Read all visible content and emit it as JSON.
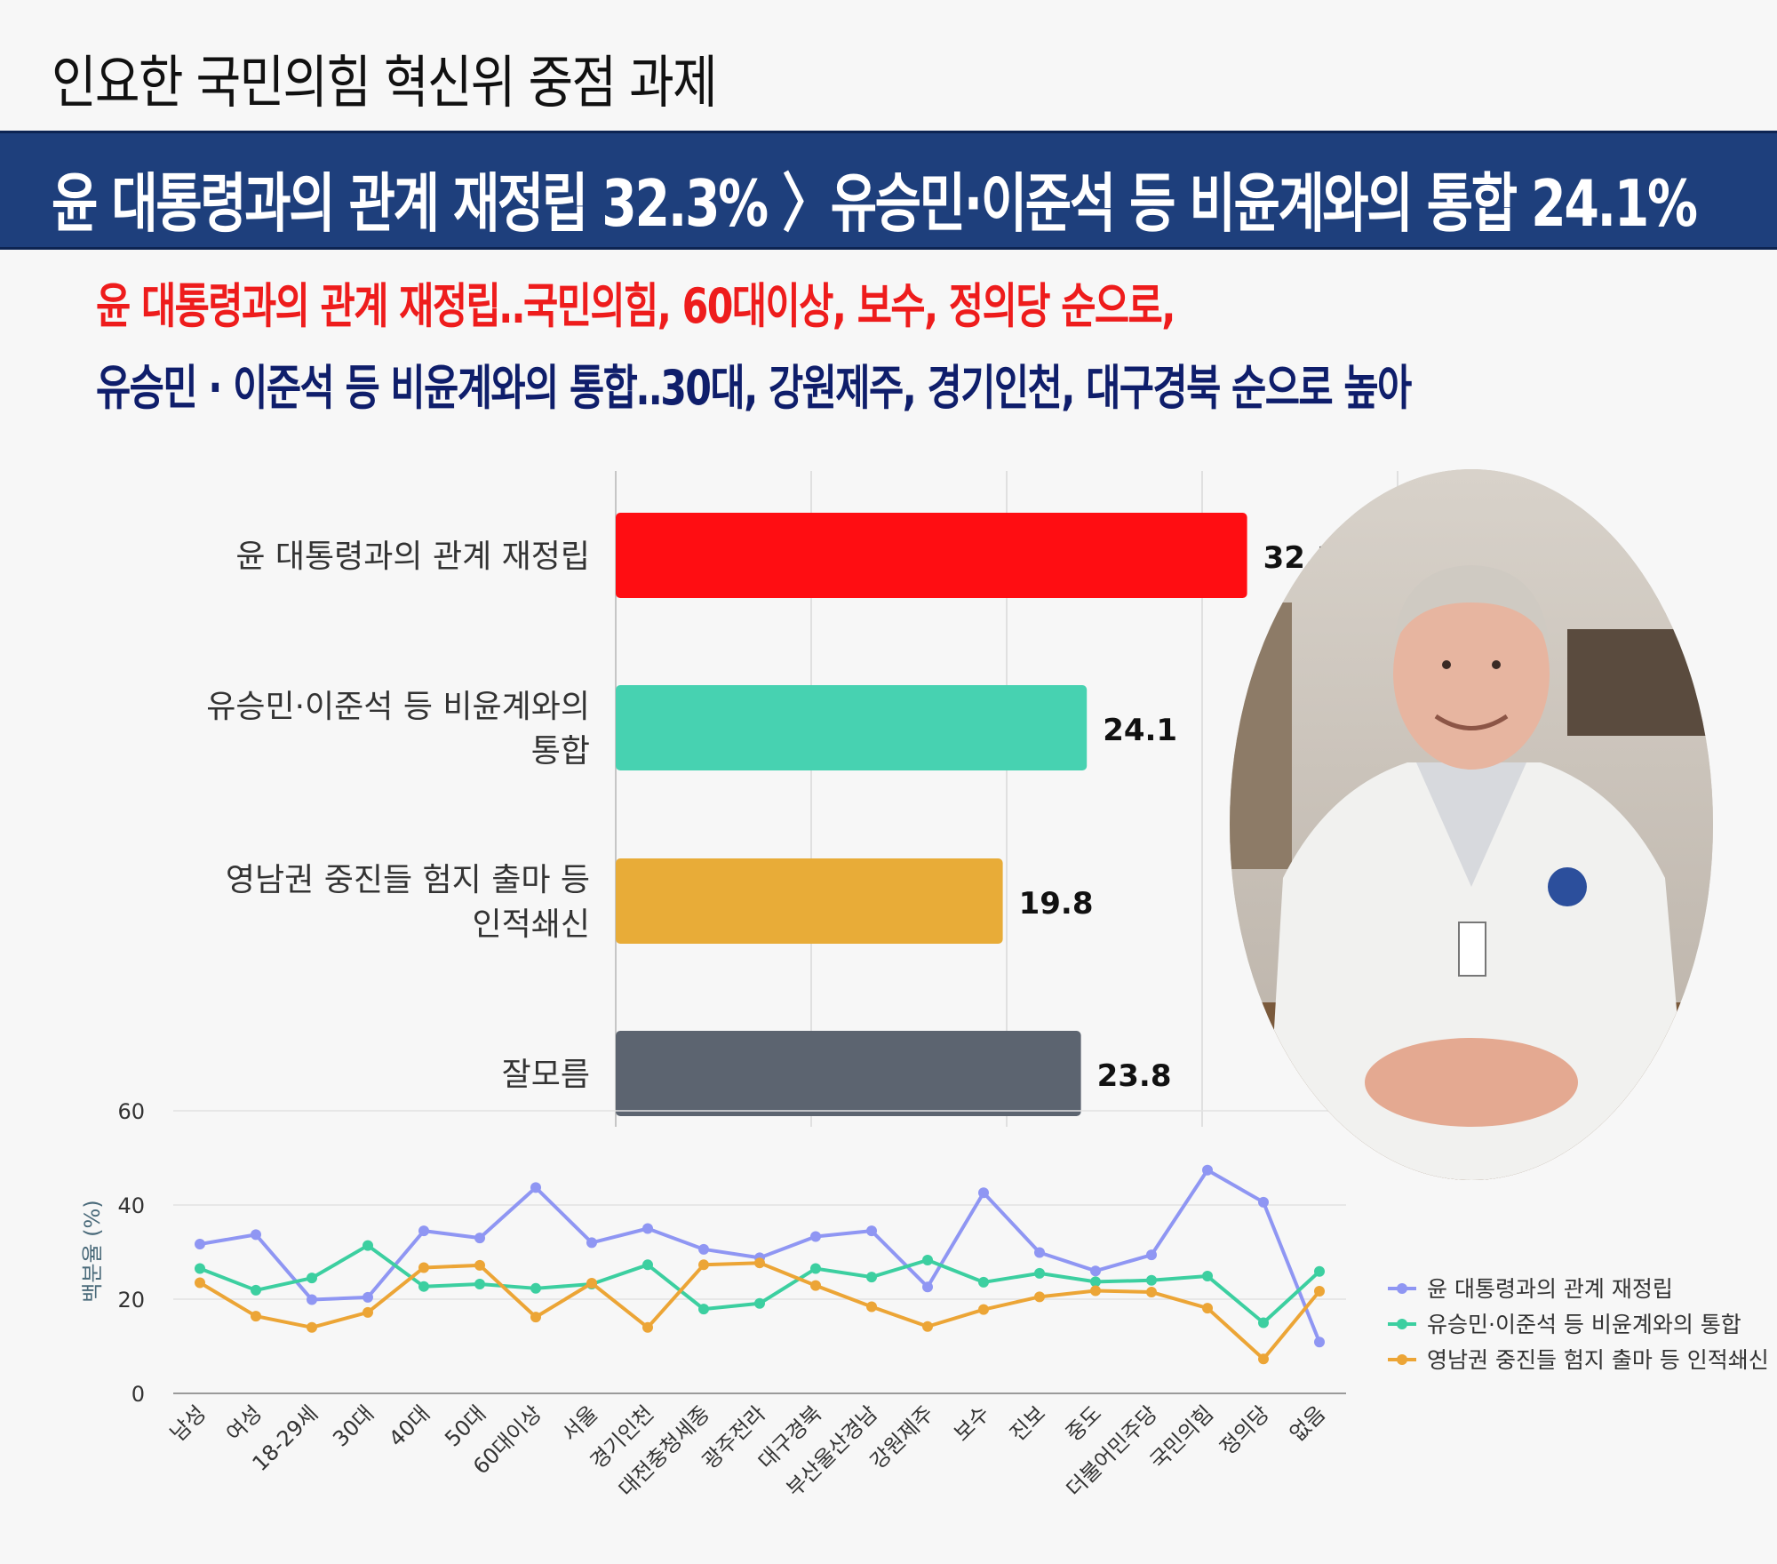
{
  "page": {
    "title": "인요한 국민의힘 혁신위 중점 과제",
    "headline": "윤 대통령과의 관계 재정립 32.3% 〉유승민·이준석 등 비윤계와의 통합 24.1%",
    "subheadline_1": "윤 대통령과의 관계 재정립‥국민의힘, 60대이상, 보수, 정의당 순으로,",
    "subheadline_2": "유승민 · 이준석 등 비윤계와의 통합‥30대, 강원제주, 경기인천, 대구경북 순으로 높아"
  },
  "photo": {
    "description": ""
  },
  "colors": {
    "band": "#1e3f7c",
    "red_text": "#ee1c1c",
    "navy_text": "#0f1e6b",
    "bar_1": "#ff0d12",
    "bar_2": "#47d2b1",
    "bar_3": "#e8ac38",
    "bar_4": "#5c6470",
    "line_1": "#8f96f3",
    "line_2": "#3ccfa0",
    "line_3": "#eca536"
  },
  "chart_data": [
    {
      "type": "bar",
      "orientation": "horizontal",
      "categories": [
        [
          "윤 대통령과의 관계 재정립"
        ],
        [
          "유승민·이준석 등 비윤계와의",
          "통합"
        ],
        [
          "영남권 중진들 험지 출마 등",
          "인적쇄신"
        ],
        [
          "잘모름"
        ]
      ],
      "values": [
        32.3,
        24.1,
        19.8,
        23.8
      ],
      "value_labels": [
        "32.3",
        "24.1",
        "19.8",
        "23.8"
      ],
      "bar_colors": [
        "#ff0d12",
        "#47d2b1",
        "#e8ac38",
        "#5c6470"
      ],
      "xlim": [
        0,
        40
      ],
      "grid": true
    },
    {
      "type": "line",
      "x": [
        "남성",
        "여성",
        "18-29세",
        "30대",
        "40대",
        "50대",
        "60대이상",
        "서울",
        "경기인천",
        "대전충청세종",
        "광주전라",
        "대구경북",
        "부산울산경남",
        "강원제주",
        "보수",
        "진보",
        "중도",
        "더불어민주당",
        "국민의힘",
        "정의당",
        "없음"
      ],
      "series": [
        {
          "name": "윤 대통령과의 관계 재정립",
          "color": "#8f96f3",
          "values": [
            31.7,
            33.7,
            19.9,
            20.4,
            34.5,
            33.0,
            43.7,
            32.0,
            35.0,
            30.6,
            28.8,
            33.3,
            34.5,
            22.6,
            42.6,
            29.9,
            26.0,
            29.4,
            47.4,
            40.6,
            10.9
          ]
        },
        {
          "name": "유승민·이준석 등 비윤계와의 통합",
          "color": "#3ccfa0",
          "values": [
            26.5,
            21.9,
            24.5,
            31.4,
            22.7,
            23.2,
            22.3,
            23.2,
            27.3,
            17.9,
            19.1,
            26.5,
            24.7,
            28.3,
            23.6,
            25.5,
            23.7,
            24.0,
            24.9,
            15.0,
            25.9
          ]
        },
        {
          "name": "영남권 중진들 험지 출마 등 인적쇄신",
          "color": "#eca536",
          "values": [
            23.5,
            16.4,
            14.0,
            17.2,
            26.7,
            27.2,
            16.2,
            23.4,
            14.0,
            27.3,
            27.7,
            22.9,
            18.4,
            14.2,
            17.8,
            20.5,
            21.8,
            21.5,
            18.1,
            7.3,
            21.7
          ]
        }
      ],
      "ylabel": "백분율 (%)",
      "yticks": [
        0,
        20,
        40,
        60
      ],
      "ylim": [
        0,
        60
      ],
      "grid": true,
      "legend": "right"
    }
  ]
}
